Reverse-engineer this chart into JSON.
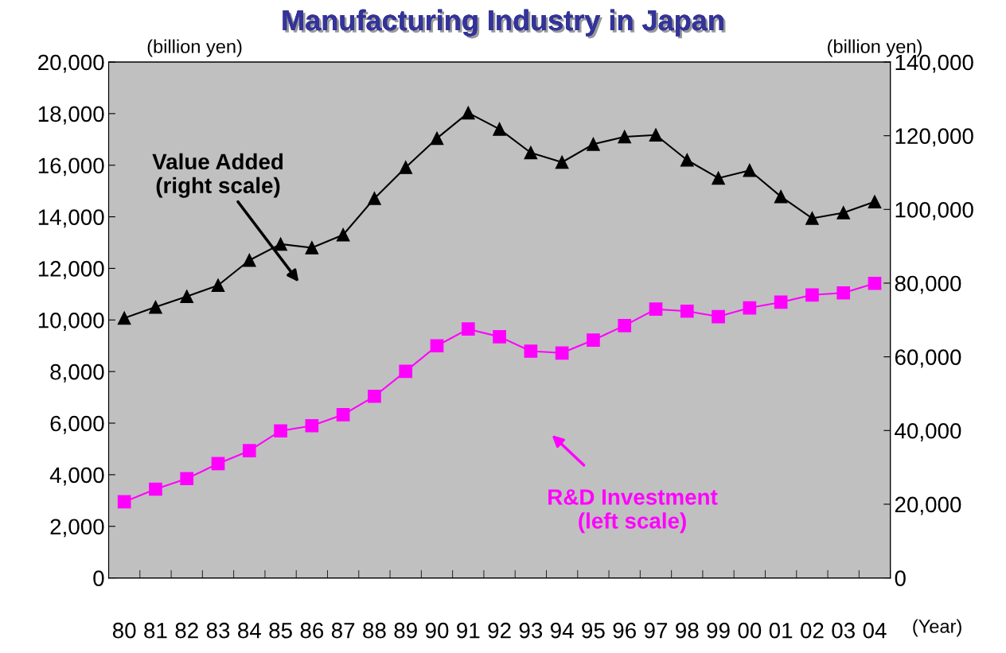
{
  "chart_data": {
    "type": "line",
    "title": "Manufacturing Industry in Japan",
    "ylabel": "(billion yen)",
    "y2label": "(billion yen)",
    "xlabel": "(Year)",
    "categories": [
      "80",
      "81",
      "82",
      "83",
      "84",
      "85",
      "86",
      "87",
      "88",
      "89",
      "90",
      "91",
      "92",
      "93",
      "94",
      "95",
      "96",
      "97",
      "98",
      "99",
      "00",
      "01",
      "02",
      "03",
      "04"
    ],
    "series": [
      {
        "color": "#000000",
        "axis": "y2",
        "marker": "triangle",
        "values": [
          70500,
          73500,
          76400,
          79400,
          86200,
          90600,
          89600,
          93100,
          103000,
          111400,
          119300,
          126200,
          121800,
          115400,
          112800,
          117700,
          119700,
          120200,
          113400,
          108500,
          110600,
          103500,
          97600,
          99100,
          102100
        ]
      },
      {
        "color": "#ff00ff",
        "axis": "y",
        "marker": "square",
        "values": [
          2950,
          3440,
          3850,
          4430,
          4930,
          5700,
          5900,
          6330,
          7040,
          8010,
          9000,
          9650,
          9350,
          8790,
          8720,
          9220,
          9780,
          10420,
          10340,
          10130,
          10470,
          10690,
          10970,
          11050,
          11420
        ]
      }
    ],
    "ylim": [
      0,
      20000
    ],
    "yticks": [
      0,
      {
        "value": 2000,
        "label": "2,000"
      },
      {
        "value": 4000,
        "label": "4,000"
      },
      {
        "value": 6000,
        "label": "6,000"
      },
      {
        "value": 8000,
        "label": "8,000"
      },
      {
        "value": 10000,
        "label": "10,000"
      },
      {
        "value": 12000,
        "label": "12,000"
      },
      {
        "value": 14000,
        "label": "14,000"
      },
      {
        "value": 16000,
        "label": "16,000"
      },
      {
        "value": 18000,
        "label": "18,000"
      },
      {
        "value": 20000,
        "label": "20,000"
      }
    ],
    "y2lim": [
      0,
      140000
    ],
    "y2ticks": [
      0,
      {
        "value": 20000,
        "label": "20,000"
      },
      {
        "value": 40000,
        "label": "40,000"
      },
      {
        "value": 60000,
        "label": "60,000"
      },
      {
        "value": 80000,
        "label": "80,000"
      },
      {
        "value": 100000,
        "label": "100,000"
      },
      {
        "value": 120000,
        "label": "120,000"
      },
      {
        "value": 140000,
        "label": "140,000"
      }
    ],
    "annotations": [
      "Value Added\n(right scale)",
      "R&D Investment\n(left scale)"
    ],
    "grid": false,
    "legend": false
  }
}
